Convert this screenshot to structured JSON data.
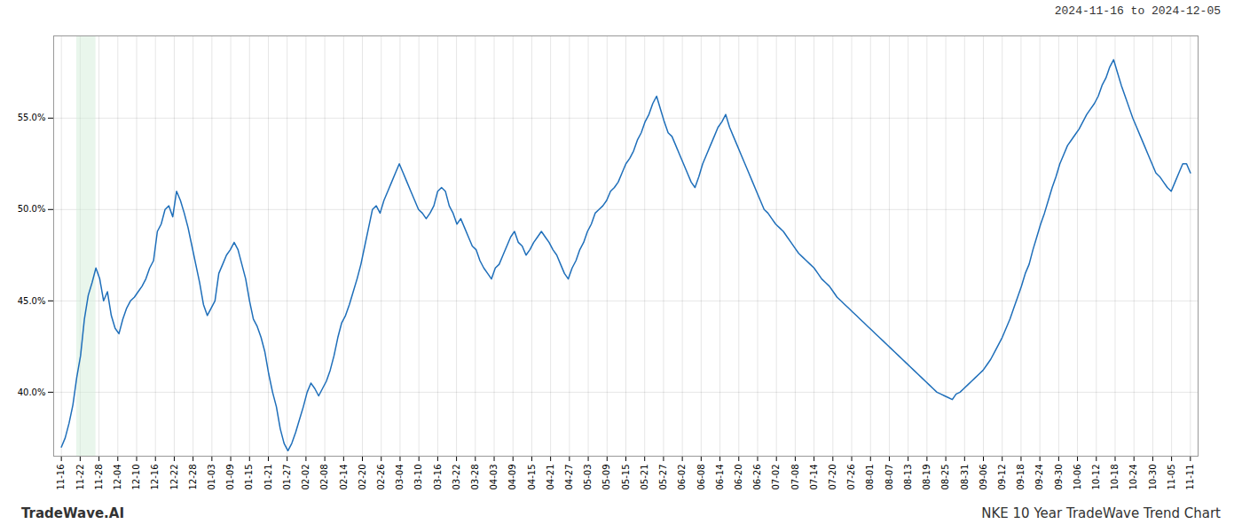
{
  "chart_data": {
    "type": "line",
    "title": "NKE 10 Year TradeWave Trend Chart",
    "subtitle": "2024-11-16 to 2024-12-05",
    "annotations": [
      "TradeWave.AI"
    ],
    "color": "#1f6fba",
    "grid": true,
    "shade": {
      "from": 4,
      "to": 9,
      "color": "#d4edda"
    },
    "xlim": [
      -2,
      296
    ],
    "xticks": [
      {
        "value": 0,
        "label": "11-16"
      },
      {
        "value": 4.9,
        "label": "11-22"
      },
      {
        "value": 9.8,
        "label": "11-28"
      },
      {
        "value": 14.7,
        "label": "12-04"
      },
      {
        "value": 19.6,
        "label": "12-10"
      },
      {
        "value": 24.5,
        "label": "12-16"
      },
      {
        "value": 29.4,
        "label": "12-22"
      },
      {
        "value": 34.3,
        "label": "12-28"
      },
      {
        "value": 39.2,
        "label": "01-03"
      },
      {
        "value": 44.1,
        "label": "01-09"
      },
      {
        "value": 49,
        "label": "01-15"
      },
      {
        "value": 53.9,
        "label": "01-21"
      },
      {
        "value": 58.8,
        "label": "01-27"
      },
      {
        "value": 63.7,
        "label": "02-02"
      },
      {
        "value": 68.6,
        "label": "02-08"
      },
      {
        "value": 73.5,
        "label": "02-14"
      },
      {
        "value": 78.4,
        "label": "02-20"
      },
      {
        "value": 83.3,
        "label": "02-26"
      },
      {
        "value": 88.2,
        "label": "03-04"
      },
      {
        "value": 93.1,
        "label": "03-10"
      },
      {
        "value": 98,
        "label": "03-16"
      },
      {
        "value": 102.9,
        "label": "03-22"
      },
      {
        "value": 107.8,
        "label": "03-28"
      },
      {
        "value": 112.7,
        "label": "04-03"
      },
      {
        "value": 117.6,
        "label": "04-09"
      },
      {
        "value": 122.5,
        "label": "04-15"
      },
      {
        "value": 127.4,
        "label": "04-21"
      },
      {
        "value": 132.3,
        "label": "04-27"
      },
      {
        "value": 137.2,
        "label": "05-03"
      },
      {
        "value": 142.1,
        "label": "05-09"
      },
      {
        "value": 147,
        "label": "05-15"
      },
      {
        "value": 151.9,
        "label": "05-21"
      },
      {
        "value": 156.8,
        "label": "05-27"
      },
      {
        "value": 161.7,
        "label": "06-02"
      },
      {
        "value": 166.6,
        "label": "06-08"
      },
      {
        "value": 171.5,
        "label": "06-14"
      },
      {
        "value": 176.4,
        "label": "06-20"
      },
      {
        "value": 181.3,
        "label": "06-26"
      },
      {
        "value": 186.2,
        "label": "07-02"
      },
      {
        "value": 191.1,
        "label": "07-08"
      },
      {
        "value": 196,
        "label": "07-14"
      },
      {
        "value": 200.9,
        "label": "07-20"
      },
      {
        "value": 205.8,
        "label": "07-26"
      },
      {
        "value": 210.7,
        "label": "08-01"
      },
      {
        "value": 215.6,
        "label": "08-07"
      },
      {
        "value": 220.5,
        "label": "08-13"
      },
      {
        "value": 225.4,
        "label": "08-19"
      },
      {
        "value": 230.3,
        "label": "08-25"
      },
      {
        "value": 235.2,
        "label": "08-31"
      },
      {
        "value": 240.1,
        "label": "09-06"
      },
      {
        "value": 245,
        "label": "09-12"
      },
      {
        "value": 249.9,
        "label": "09-18"
      },
      {
        "value": 254.8,
        "label": "09-24"
      },
      {
        "value": 259.7,
        "label": "09-30"
      },
      {
        "value": 264.6,
        "label": "10-06"
      },
      {
        "value": 269.5,
        "label": "10-12"
      },
      {
        "value": 274.4,
        "label": "10-18"
      },
      {
        "value": 279.3,
        "label": "10-24"
      },
      {
        "value": 284.2,
        "label": "10-30"
      },
      {
        "value": 289.1,
        "label": "11-05"
      },
      {
        "value": 294,
        "label": "11-11"
      }
    ],
    "ylim": [
      0.365,
      0.595
    ],
    "yticks": [
      {
        "value": 0.4,
        "label": "40.0%"
      },
      {
        "value": 0.45,
        "label": "45.0%"
      },
      {
        "value": 0.5,
        "label": "50.0%"
      },
      {
        "value": 0.55,
        "label": "55.0%"
      }
    ],
    "values": [
      0.37,
      0.375,
      0.383,
      0.393,
      0.408,
      0.42,
      0.44,
      0.453,
      0.46,
      0.468,
      0.462,
      0.45,
      0.455,
      0.442,
      0.435,
      0.432,
      0.44,
      0.446,
      0.45,
      0.452,
      0.455,
      0.458,
      0.462,
      0.468,
      0.472,
      0.488,
      0.492,
      0.5,
      0.502,
      0.496,
      0.51,
      0.505,
      0.498,
      0.49,
      0.48,
      0.47,
      0.46,
      0.448,
      0.442,
      0.446,
      0.45,
      0.465,
      0.47,
      0.475,
      0.478,
      0.482,
      0.478,
      0.47,
      0.462,
      0.45,
      0.44,
      0.436,
      0.43,
      0.422,
      0.41,
      0.4,
      0.392,
      0.38,
      0.372,
      0.368,
      0.372,
      0.378,
      0.385,
      0.392,
      0.4,
      0.405,
      0.402,
      0.398,
      0.402,
      0.406,
      0.412,
      0.42,
      0.43,
      0.438,
      0.442,
      0.448,
      0.455,
      0.462,
      0.47,
      0.48,
      0.49,
      0.5,
      0.502,
      0.498,
      0.505,
      0.51,
      0.515,
      0.52,
      0.525,
      0.52,
      0.515,
      0.51,
      0.505,
      0.5,
      0.498,
      0.495,
      0.498,
      0.502,
      0.51,
      0.512,
      0.51,
      0.502,
      0.498,
      0.492,
      0.495,
      0.49,
      0.485,
      0.48,
      0.478,
      0.472,
      0.468,
      0.465,
      0.462,
      0.468,
      0.47,
      0.475,
      0.48,
      0.485,
      0.488,
      0.482,
      0.48,
      0.475,
      0.478,
      0.482,
      0.485,
      0.488,
      0.485,
      0.482,
      0.478,
      0.475,
      0.47,
      0.465,
      0.462,
      0.468,
      0.472,
      0.478,
      0.482,
      0.488,
      0.492,
      0.498,
      0.5,
      0.502,
      0.505,
      0.51,
      0.512,
      0.515,
      0.52,
      0.525,
      0.528,
      0.532,
      0.538,
      0.542,
      0.548,
      0.552,
      0.558,
      0.562,
      0.555,
      0.548,
      0.542,
      0.54,
      0.535,
      0.53,
      0.525,
      0.52,
      0.515,
      0.512,
      0.518,
      0.525,
      0.53,
      0.535,
      0.54,
      0.545,
      0.548,
      0.552,
      0.545,
      0.54,
      0.535,
      0.53,
      0.525,
      0.52,
      0.515,
      0.51,
      0.505,
      0.5,
      0.498,
      0.495,
      0.492,
      0.49,
      0.488,
      0.485,
      0.482,
      0.479,
      0.476,
      0.474,
      0.472,
      0.47,
      0.468,
      0.465,
      0.462,
      0.46,
      0.458,
      0.455,
      0.452,
      0.45,
      0.448,
      0.446,
      0.444,
      0.442,
      0.44,
      0.438,
      0.436,
      0.434,
      0.432,
      0.43,
      0.428,
      0.426,
      0.424,
      0.422,
      0.42,
      0.418,
      0.416,
      0.414,
      0.412,
      0.41,
      0.408,
      0.406,
      0.404,
      0.402,
      0.4,
      0.399,
      0.398,
      0.397,
      0.396,
      0.399,
      0.4,
      0.402,
      0.404,
      0.406,
      0.408,
      0.41,
      0.412,
      0.415,
      0.418,
      0.422,
      0.426,
      0.43,
      0.435,
      0.44,
      0.446,
      0.452,
      0.458,
      0.465,
      0.47,
      0.478,
      0.485,
      0.492,
      0.498,
      0.505,
      0.512,
      0.518,
      0.525,
      0.53,
      0.535,
      0.538,
      0.541,
      0.544,
      0.548,
      0.552,
      0.555,
      0.558,
      0.562,
      0.568,
      0.572,
      0.578,
      0.582,
      0.575,
      0.568,
      0.562,
      0.556,
      0.55,
      0.545,
      0.54,
      0.535,
      0.53,
      0.525,
      0.52,
      0.518,
      0.515,
      0.512,
      0.51,
      0.515,
      0.52,
      0.525,
      0.525,
      0.52
    ]
  }
}
